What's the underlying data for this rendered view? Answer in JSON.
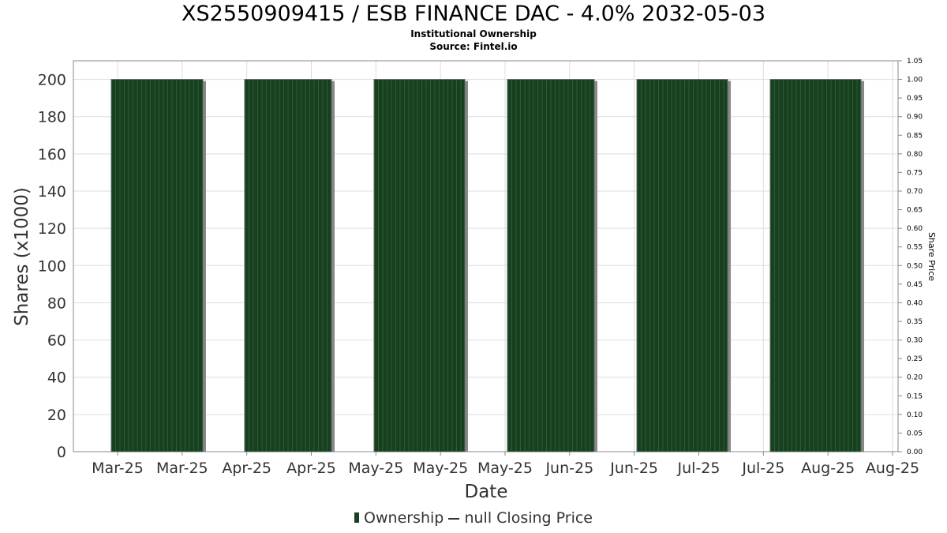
{
  "chart_data": {
    "type": "bar",
    "title": "XS2550909415 / ESB FINANCE DAC - 4.0% 2032-05-03",
    "subtitle": "Institutional Ownership",
    "source": "Source: Fintel.io",
    "xlabel": "Date",
    "ylabel": "Shares (x1000)",
    "y2label": "Share Price",
    "ylim": [
      0,
      210
    ],
    "y2lim": [
      0,
      1.05
    ],
    "grid": true,
    "x_tick_labels": [
      "Mar-25",
      "Mar-25",
      "Apr-25",
      "Apr-25",
      "May-25",
      "May-25",
      "May-25",
      "Jun-25",
      "Jun-25",
      "Jul-25",
      "Jul-25",
      "Aug-25",
      "Aug-25"
    ],
    "y_ticks": [
      0,
      20,
      40,
      60,
      80,
      100,
      120,
      140,
      160,
      180,
      200
    ],
    "y2_ticks": [
      "0.00",
      "0.05",
      "0.10",
      "0.15",
      "0.20",
      "0.25",
      "0.30",
      "0.35",
      "0.40",
      "0.45",
      "0.50",
      "0.55",
      "0.60",
      "0.65",
      "0.70",
      "0.75",
      "0.80",
      "0.85",
      "0.90",
      "0.95",
      "1.00",
      "1.05"
    ],
    "series": [
      {
        "name": "Ownership",
        "color": "#17401f",
        "values": [
          200,
          200,
          200,
          200,
          200,
          200
        ]
      },
      {
        "name": "null Closing Price",
        "color": "#333333",
        "values": []
      }
    ],
    "legend_position": "bottom-center"
  }
}
